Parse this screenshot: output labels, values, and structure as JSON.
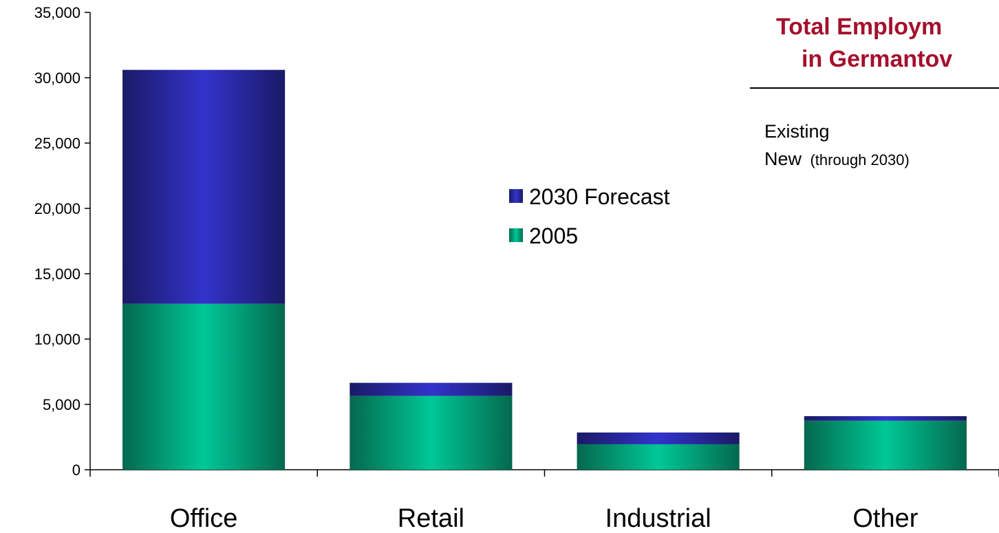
{
  "chart_data": {
    "type": "bar",
    "stacked": true,
    "categories": [
      "Office",
      "Retail",
      "Industrial",
      "Other"
    ],
    "series": [
      {
        "name": "2005",
        "values": [
          12700,
          5650,
          1950,
          3750
        ],
        "color": "#00c896"
      },
      {
        "name": "2030 Forecast",
        "values": [
          17900,
          1000,
          900,
          350
        ],
        "color": "#3333cc"
      }
    ],
    "y_ticks": [
      "0",
      "5,000",
      "10,000",
      "15,000",
      "20,000",
      "25,000",
      "30,000",
      "35,000"
    ],
    "ylim": [
      0,
      35000
    ],
    "grid": false,
    "legend": {
      "placement": "center",
      "entries": [
        "2030 Forecast",
        "2005"
      ]
    }
  },
  "side_panel": {
    "title_line1": "Total Employm",
    "title_line2": "in Germantov",
    "row1": "Existing",
    "row2_main": "New",
    "row2_note": "(through 2030)"
  },
  "colors": {
    "title": "#a50f2d",
    "forecast": "#3333cc",
    "base": "#00c896"
  }
}
